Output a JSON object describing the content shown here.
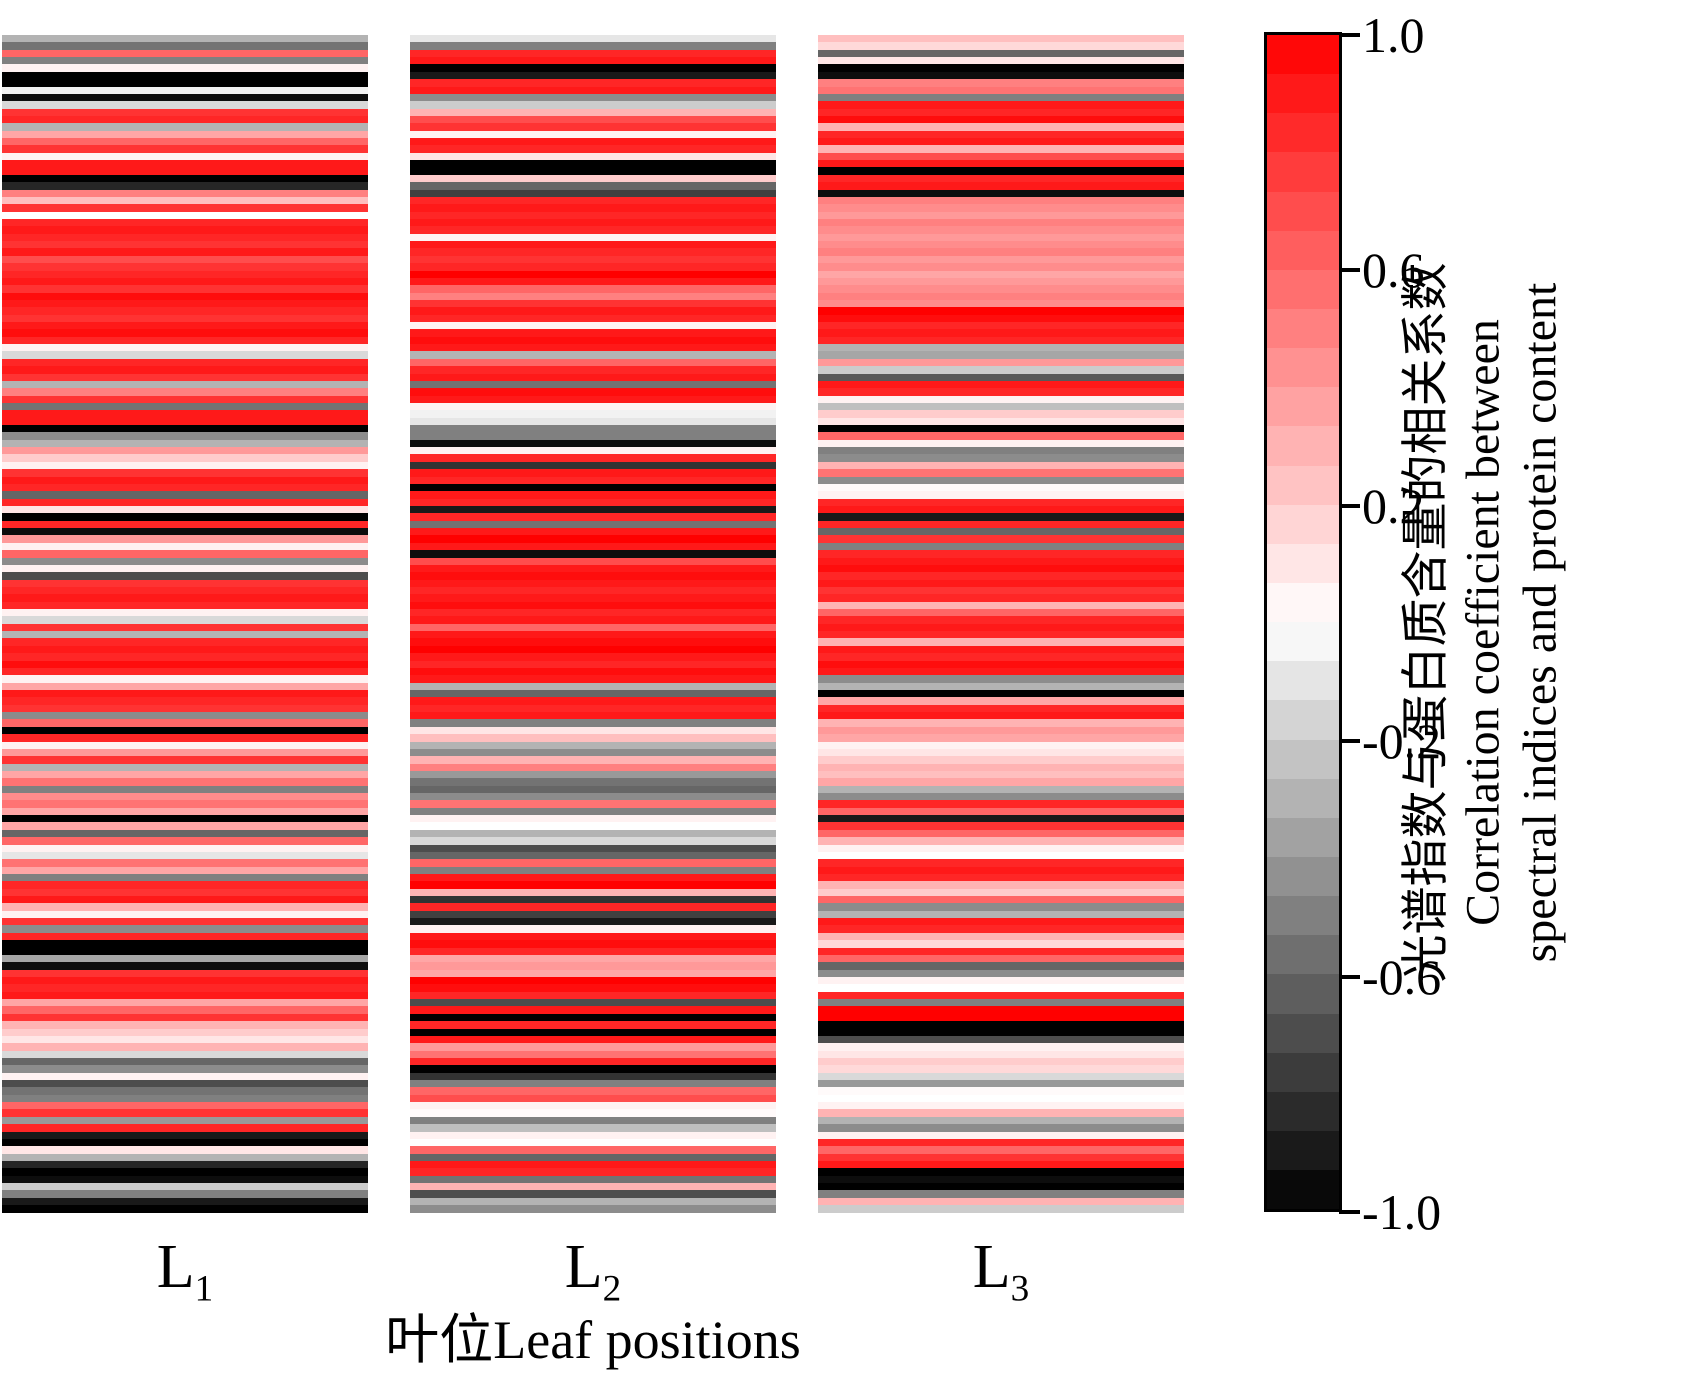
{
  "chart_data": {
    "type": "heatmap",
    "description": "Striped correlation heatmap: rows are spectral indices, columns are leaf positions; color encodes correlation coefficient between spectral indices and protein content.",
    "grid": false,
    "legend_position": "right-colorbar",
    "xlabel": "叶位Leaf positions",
    "x_tick_labels": [
      {
        "base": "L",
        "sub": "1"
      },
      {
        "base": "L",
        "sub": "2"
      },
      {
        "base": "L",
        "sub": "3"
      }
    ],
    "colorbar": {
      "title_lines": {
        "zh": "光谱指数与蛋白质含量的相关系数",
        "en1": "Correlation coefficient between",
        "en2": "spectral indices and protein content"
      },
      "ticks": [
        "1.0",
        "0.6",
        "0.2",
        "-0.2",
        "-0.6",
        "-1.0"
      ],
      "tick_values": [
        1.0,
        0.6,
        0.2,
        -0.2,
        -0.6,
        -1.0
      ],
      "range": [
        -1.0,
        1.0
      ],
      "steps": 30,
      "colormap": {
        "positive_end": "#ff0000",
        "zero": "#ffffff",
        "negative_end": "#000000"
      }
    },
    "columns": [
      "L1",
      "L2",
      "L3"
    ],
    "n_rows": 160,
    "series": [
      {
        "name": "L1",
        "values": [
          -0.3,
          -0.55,
          0.6,
          -0.5,
          0.05,
          -1,
          -1,
          -0.05,
          -0.95,
          -0.15,
          0.8,
          0.85,
          -0.3,
          0.35,
          0.6,
          0.8,
          0.05,
          0.9,
          0.9,
          -1,
          -0.85,
          0.5,
          0.25,
          0.8,
          0,
          0.85,
          0.9,
          0.85,
          0.8,
          0.9,
          0.7,
          0.8,
          0.85,
          0.9,
          0.8,
          0.95,
          0.9,
          0.85,
          0.8,
          0.9,
          0.95,
          0.85,
          0.05,
          -0.15,
          0.85,
          0.9,
          0.8,
          -0.3,
          0.5,
          0.8,
          -0.55,
          0.9,
          0.9,
          -1,
          -0.45,
          -0.3,
          0.4,
          0.2,
          0.05,
          0.8,
          0.9,
          0.85,
          -0.6,
          0.85,
          0.1,
          -1,
          0.85,
          -0.95,
          0.4,
          0.05,
          0.6,
          -0.45,
          0.05,
          -0.7,
          0.8,
          0.85,
          0.9,
          0.85,
          0.05,
          -0.15,
          0.8,
          -0.3,
          0.85,
          0.9,
          0.85,
          0.95,
          0.85,
          0.05,
          0.35,
          0.9,
          0.85,
          0.8,
          -0.45,
          0.6,
          -1,
          0.85,
          0.05,
          0.4,
          0.8,
          -0.3,
          0.35,
          0.55,
          -0.5,
          0.45,
          0.55,
          0.35,
          -1,
          0.35,
          -0.6,
          0.6,
          0.05,
          -0.1,
          0.55,
          0.35,
          -0.5,
          0.85,
          0.8,
          0.9,
          0.3,
          0.05,
          0.8,
          -0.45,
          0.85,
          -1,
          -1,
          -0.35,
          -0.95,
          0.8,
          0.9,
          0.85,
          0.9,
          0.35,
          0.6,
          0.8,
          0.3,
          0.2,
          0.1,
          0.3,
          -0.15,
          -0.6,
          -0.45,
          0.05,
          -0.7,
          -0.55,
          -0.5,
          0.6,
          0.8,
          -0.4,
          0.85,
          -0.9,
          -1,
          0.1,
          -0.3,
          -0.85,
          -1,
          -0.95,
          -0.2,
          -0.5,
          -0.9,
          -1
        ]
      },
      {
        "name": "L2",
        "values": [
          -0.1,
          -0.5,
          0.85,
          0.9,
          -1,
          -0.9,
          0.85,
          0.9,
          -0.45,
          -0.2,
          0.3,
          0.7,
          0.8,
          0.05,
          0.9,
          0.85,
          0.1,
          -1,
          -1,
          0.2,
          -0.6,
          -0.75,
          0.85,
          0.9,
          0.85,
          0.9,
          0.85,
          0.05,
          0.9,
          0.85,
          0.8,
          0.85,
          1,
          0.9,
          0.6,
          0.5,
          0.8,
          0.9,
          0.85,
          0.05,
          0.9,
          0.95,
          0.9,
          -0.3,
          0.6,
          0.85,
          0.9,
          -0.55,
          0.95,
          0.9,
          0.05,
          -0.05,
          -0.1,
          -0.5,
          -0.5,
          -0.95,
          0.05,
          0.85,
          -0.8,
          0.9,
          0.85,
          -1,
          0.9,
          0.85,
          -0.9,
          0.85,
          -0.55,
          0.9,
          1,
          0.9,
          -0.95,
          0.7,
          0.9,
          0.95,
          0.9,
          0.85,
          0.9,
          0.95,
          0.85,
          0.9,
          0.6,
          0.9,
          0.95,
          1,
          0.9,
          0.85,
          0.95,
          0.9,
          -0.3,
          -0.6,
          0.9,
          0.85,
          0.9,
          -0.5,
          0.1,
          0.25,
          -0.3,
          -0.45,
          0.3,
          0.5,
          -0.4,
          -0.55,
          -0.6,
          -0.45,
          0.55,
          -0.5,
          0.05,
          0,
          -0.3,
          -0.15,
          -0.7,
          -0.6,
          0.6,
          -0.5,
          0.9,
          1,
          0.3,
          -0.8,
          0.85,
          -0.75,
          -0.9,
          0.05,
          0.9,
          0.95,
          0.85,
          0.35,
          0.4,
          0.35,
          1,
          0.95,
          0.85,
          -0.7,
          0.9,
          -1,
          0.85,
          -1,
          0.9,
          0.4,
          0.55,
          0.85,
          -1,
          -0.8,
          -0.5,
          0.6,
          0.7,
          0.05,
          0.02,
          -0.5,
          -0.25,
          0.05,
          0,
          0.6,
          -0.6,
          0.9,
          0.85,
          -0.55,
          0.3,
          -0.7,
          -0.3,
          -0.45
        ]
      },
      {
        "name": "L3",
        "values": [
          0.25,
          0.15,
          -0.6,
          0.1,
          -1,
          -0.95,
          0.5,
          0.55,
          -0.5,
          0.9,
          0.85,
          0.95,
          0.3,
          0.85,
          0.9,
          0.3,
          0.7,
          0.9,
          -1,
          0.85,
          0.9,
          -0.95,
          0.5,
          0.45,
          0.4,
          0.5,
          0.45,
          0.4,
          0.45,
          0.5,
          0.4,
          0.45,
          0.35,
          0.4,
          0.45,
          0.5,
          0.45,
          1,
          0.95,
          0.85,
          0.9,
          0.85,
          -0.3,
          -0.35,
          0.4,
          -0.2,
          -0.65,
          0.9,
          0.85,
          0.05,
          -0.25,
          0.2,
          0.1,
          -1,
          0.6,
          0.05,
          -0.5,
          -0.45,
          0.3,
          0.55,
          -0.45,
          0.02,
          0.05,
          0.85,
          0.9,
          -0.9,
          0.85,
          -0.6,
          0.8,
          -0.5,
          0.85,
          0.9,
          0.95,
          0.85,
          0.9,
          0.8,
          0.85,
          0.3,
          0.6,
          0.85,
          0.9,
          0.85,
          0.3,
          0.9,
          0.85,
          0.95,
          0.9,
          -0.45,
          -0.3,
          -1,
          0.35,
          0.85,
          0.9,
          0.3,
          0.4,
          0.35,
          0.05,
          0.1,
          0.2,
          0.3,
          0.25,
          0.35,
          -0.3,
          -0.45,
          0.85,
          0.6,
          -0.9,
          0.8,
          0.6,
          0.3,
          0.05,
          0,
          0.85,
          0.9,
          0.85,
          0.3,
          0.2,
          0.6,
          -0.45,
          -0.3,
          0.9,
          0.85,
          0.3,
          0.15,
          0.85,
          0.6,
          -0.6,
          -0.45,
          0.05,
          0,
          0.85,
          -0.5,
          1,
          1,
          -1,
          -1,
          -0.7,
          0.05,
          0.1,
          0.2,
          0.15,
          -0.15,
          -0.4,
          0.02,
          0,
          0.05,
          0.3,
          -0.3,
          -0.45,
          0.05,
          0.85,
          0.6,
          0.8,
          0.9,
          -1,
          -0.95,
          -1,
          -0.5,
          0.3,
          -0.2
        ]
      }
    ]
  }
}
